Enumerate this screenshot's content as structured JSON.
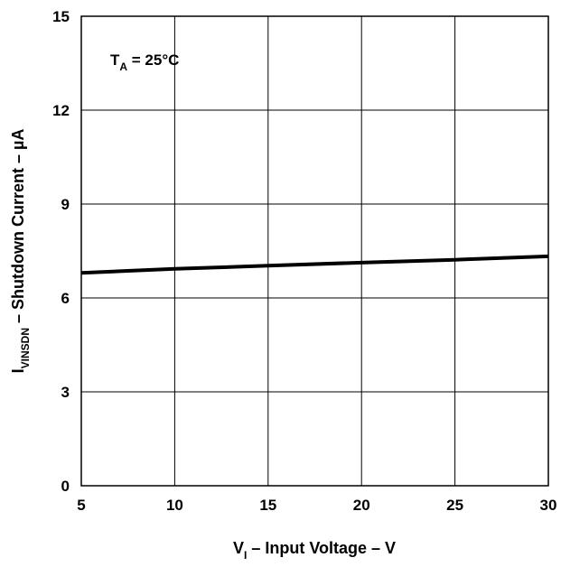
{
  "chart_data": {
    "type": "line",
    "title": "",
    "xlabel": {
      "main": "V",
      "sub": "I",
      "rest": " – Input Voltage  –  V"
    },
    "ylabel": {
      "main": "I",
      "sub": "VINSDN",
      "rest": " – Shutdown Current  –  µA"
    },
    "annotation": {
      "main": "T",
      "sub": "A",
      "rest": " = 25°C"
    },
    "xlim": [
      5,
      30
    ],
    "ylim": [
      0,
      15
    ],
    "xticks": [
      5,
      10,
      15,
      20,
      25,
      30
    ],
    "yticks": [
      0,
      3,
      6,
      9,
      12,
      15
    ],
    "grid": true,
    "series": [
      {
        "x": [
          5,
          10,
          15,
          20,
          25,
          30
        ],
        "y": [
          6.8,
          6.93,
          7.03,
          7.13,
          7.22,
          7.33
        ]
      }
    ],
    "colors": {
      "line": "#000000",
      "grid": "#000000"
    }
  }
}
